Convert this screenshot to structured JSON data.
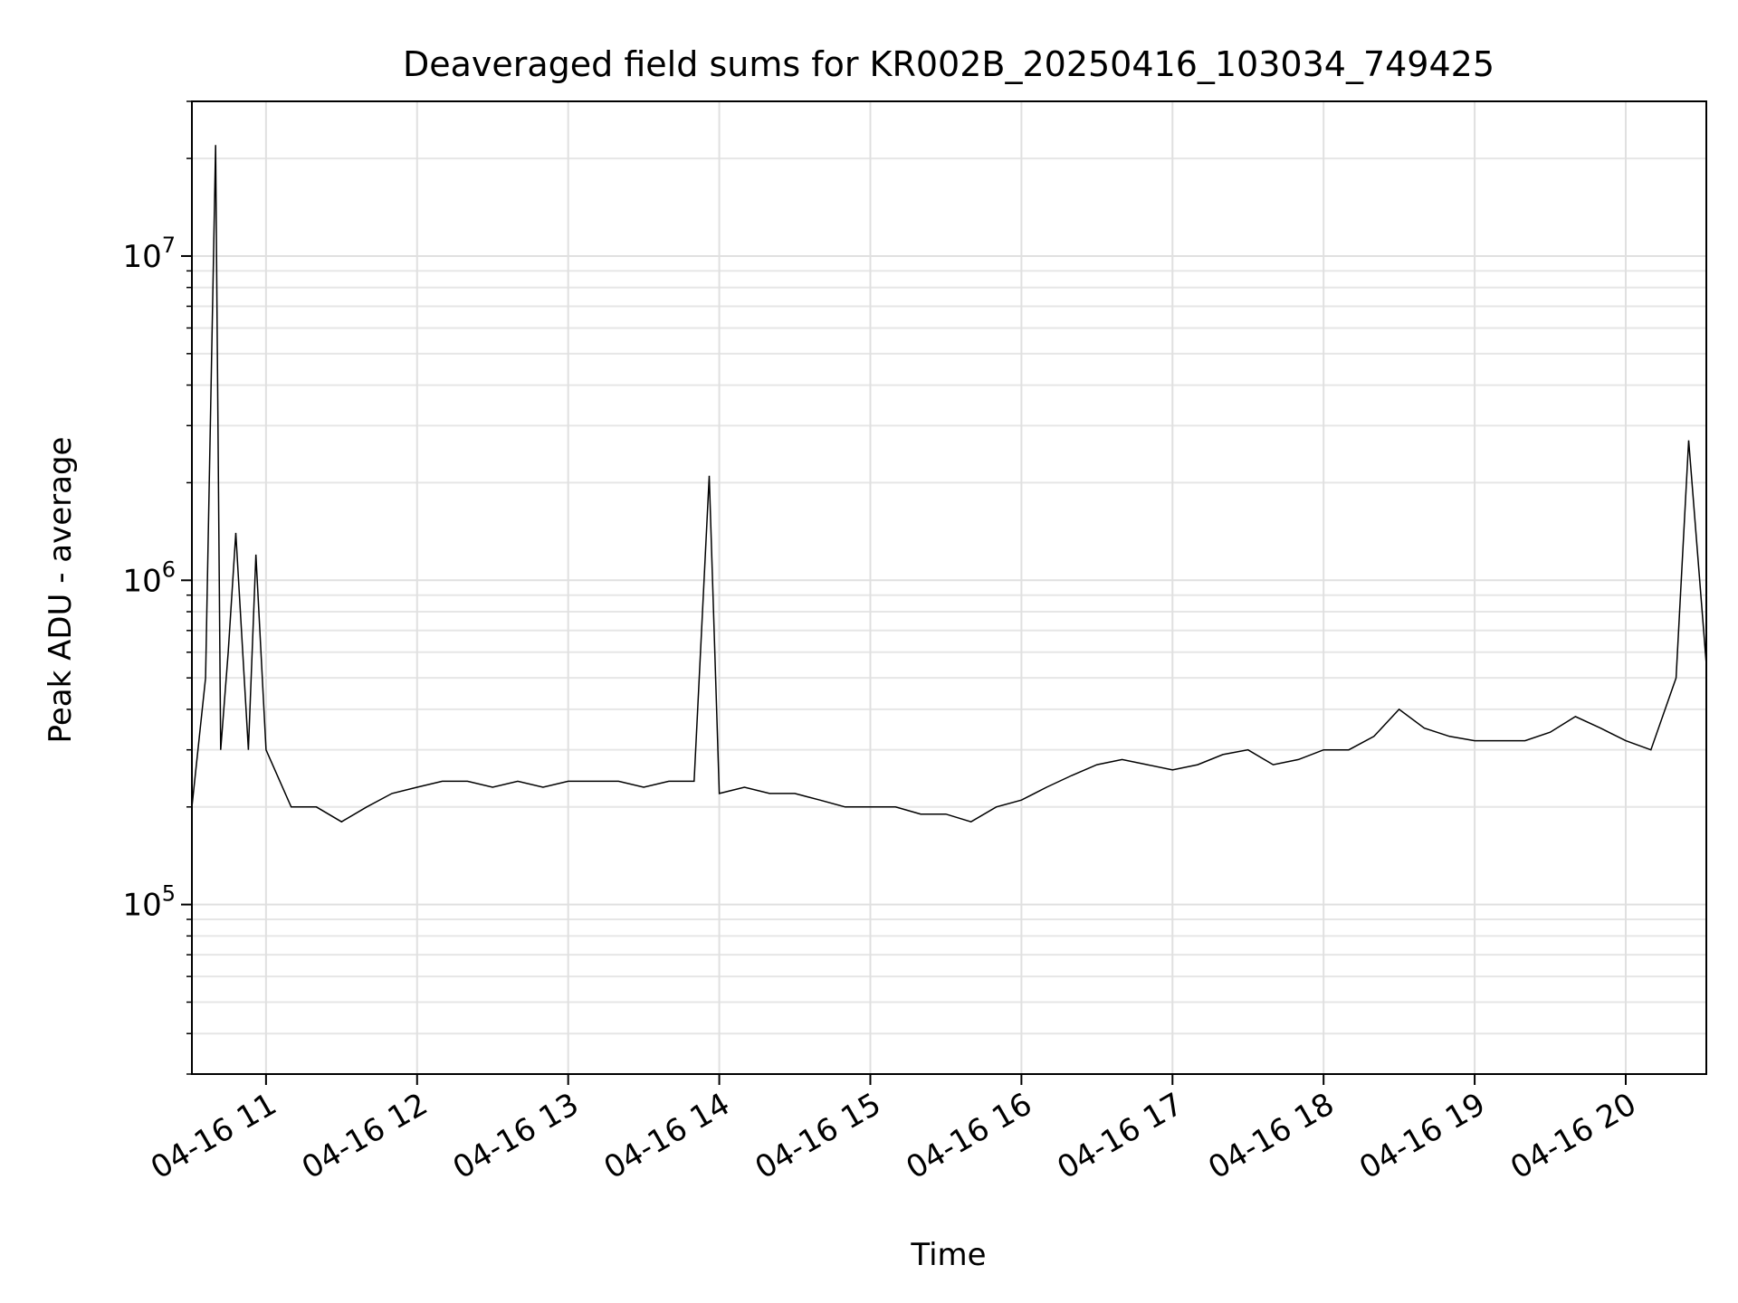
{
  "chart_data": {
    "type": "line",
    "title": "Deaveraged field sums for KR002B_20250416_103034_749425",
    "xlabel": "Time",
    "ylabel": "Peak ADU - average",
    "yscale": "log",
    "grid": true,
    "legend": "none",
    "line_color": "#000000",
    "xlim": [
      "2025-04-16T10:30:34",
      "2025-04-16T20:32:00"
    ],
    "ylim": [
      30000,
      30000000
    ],
    "x_ticks": [
      {
        "t": "2025-04-16T11:00:00",
        "label": "04-16 11"
      },
      {
        "t": "2025-04-16T12:00:00",
        "label": "04-16 12"
      },
      {
        "t": "2025-04-16T13:00:00",
        "label": "04-16 13"
      },
      {
        "t": "2025-04-16T14:00:00",
        "label": "04-16 14"
      },
      {
        "t": "2025-04-16T15:00:00",
        "label": "04-16 15"
      },
      {
        "t": "2025-04-16T16:00:00",
        "label": "04-16 16"
      },
      {
        "t": "2025-04-16T17:00:00",
        "label": "04-16 17"
      },
      {
        "t": "2025-04-16T18:00:00",
        "label": "04-16 18"
      },
      {
        "t": "2025-04-16T19:00:00",
        "label": "04-16 19"
      },
      {
        "t": "2025-04-16T20:00:00",
        "label": "04-16 20"
      }
    ],
    "y_ticks": [
      {
        "value": 100000,
        "base": "10",
        "exp": "5"
      },
      {
        "value": 1000000,
        "base": "10",
        "exp": "6"
      },
      {
        "value": 10000000,
        "base": "10",
        "exp": "7"
      }
    ],
    "series": [
      {
        "x": [
          "2025-04-16T10:30:34",
          "2025-04-16T10:36:00",
          "2025-04-16T10:40:00",
          "2025-04-16T10:42:00",
          "2025-04-16T10:45:00",
          "2025-04-16T10:48:00",
          "2025-04-16T10:53:00",
          "2025-04-16T10:56:00",
          "2025-04-16T11:00:00",
          "2025-04-16T11:10:00",
          "2025-04-16T11:20:00",
          "2025-04-16T11:30:00",
          "2025-04-16T11:40:00",
          "2025-04-16T11:50:00",
          "2025-04-16T12:00:00",
          "2025-04-16T12:10:00",
          "2025-04-16T12:20:00",
          "2025-04-16T12:30:00",
          "2025-04-16T12:40:00",
          "2025-04-16T12:50:00",
          "2025-04-16T13:00:00",
          "2025-04-16T13:10:00",
          "2025-04-16T13:20:00",
          "2025-04-16T13:30:00",
          "2025-04-16T13:40:00",
          "2025-04-16T13:50:00",
          "2025-04-16T13:56:00",
          "2025-04-16T14:00:00",
          "2025-04-16T14:10:00",
          "2025-04-16T14:20:00",
          "2025-04-16T14:30:00",
          "2025-04-16T14:40:00",
          "2025-04-16T14:50:00",
          "2025-04-16T15:00:00",
          "2025-04-16T15:10:00",
          "2025-04-16T15:20:00",
          "2025-04-16T15:30:00",
          "2025-04-16T15:40:00",
          "2025-04-16T15:50:00",
          "2025-04-16T16:00:00",
          "2025-04-16T16:10:00",
          "2025-04-16T16:20:00",
          "2025-04-16T16:30:00",
          "2025-04-16T16:40:00",
          "2025-04-16T16:50:00",
          "2025-04-16T17:00:00",
          "2025-04-16T17:10:00",
          "2025-04-16T17:20:00",
          "2025-04-16T17:30:00",
          "2025-04-16T17:40:00",
          "2025-04-16T17:50:00",
          "2025-04-16T18:00:00",
          "2025-04-16T18:10:00",
          "2025-04-16T18:20:00",
          "2025-04-16T18:30:00",
          "2025-04-16T18:40:00",
          "2025-04-16T18:50:00",
          "2025-04-16T19:00:00",
          "2025-04-16T19:10:00",
          "2025-04-16T19:20:00",
          "2025-04-16T19:30:00",
          "2025-04-16T19:40:00",
          "2025-04-16T19:50:00",
          "2025-04-16T20:00:00",
          "2025-04-16T20:10:00",
          "2025-04-16T20:20:00",
          "2025-04-16T20:25:00",
          "2025-04-16T20:32:00"
        ],
        "y": [
          200000,
          500000,
          22000000,
          300000,
          600000,
          1400000,
          300000,
          1200000,
          300000,
          200000,
          200000,
          180000,
          200000,
          220000,
          230000,
          240000,
          240000,
          230000,
          240000,
          230000,
          240000,
          240000,
          240000,
          230000,
          240000,
          240000,
          2100000,
          220000,
          230000,
          220000,
          220000,
          210000,
          200000,
          200000,
          200000,
          190000,
          190000,
          180000,
          200000,
          210000,
          230000,
          250000,
          270000,
          280000,
          270000,
          260000,
          270000,
          290000,
          300000,
          270000,
          280000,
          300000,
          300000,
          330000,
          400000,
          350000,
          330000,
          320000,
          320000,
          320000,
          340000,
          380000,
          350000,
          320000,
          300000,
          500000,
          2700000,
          550000
        ]
      }
    ]
  }
}
